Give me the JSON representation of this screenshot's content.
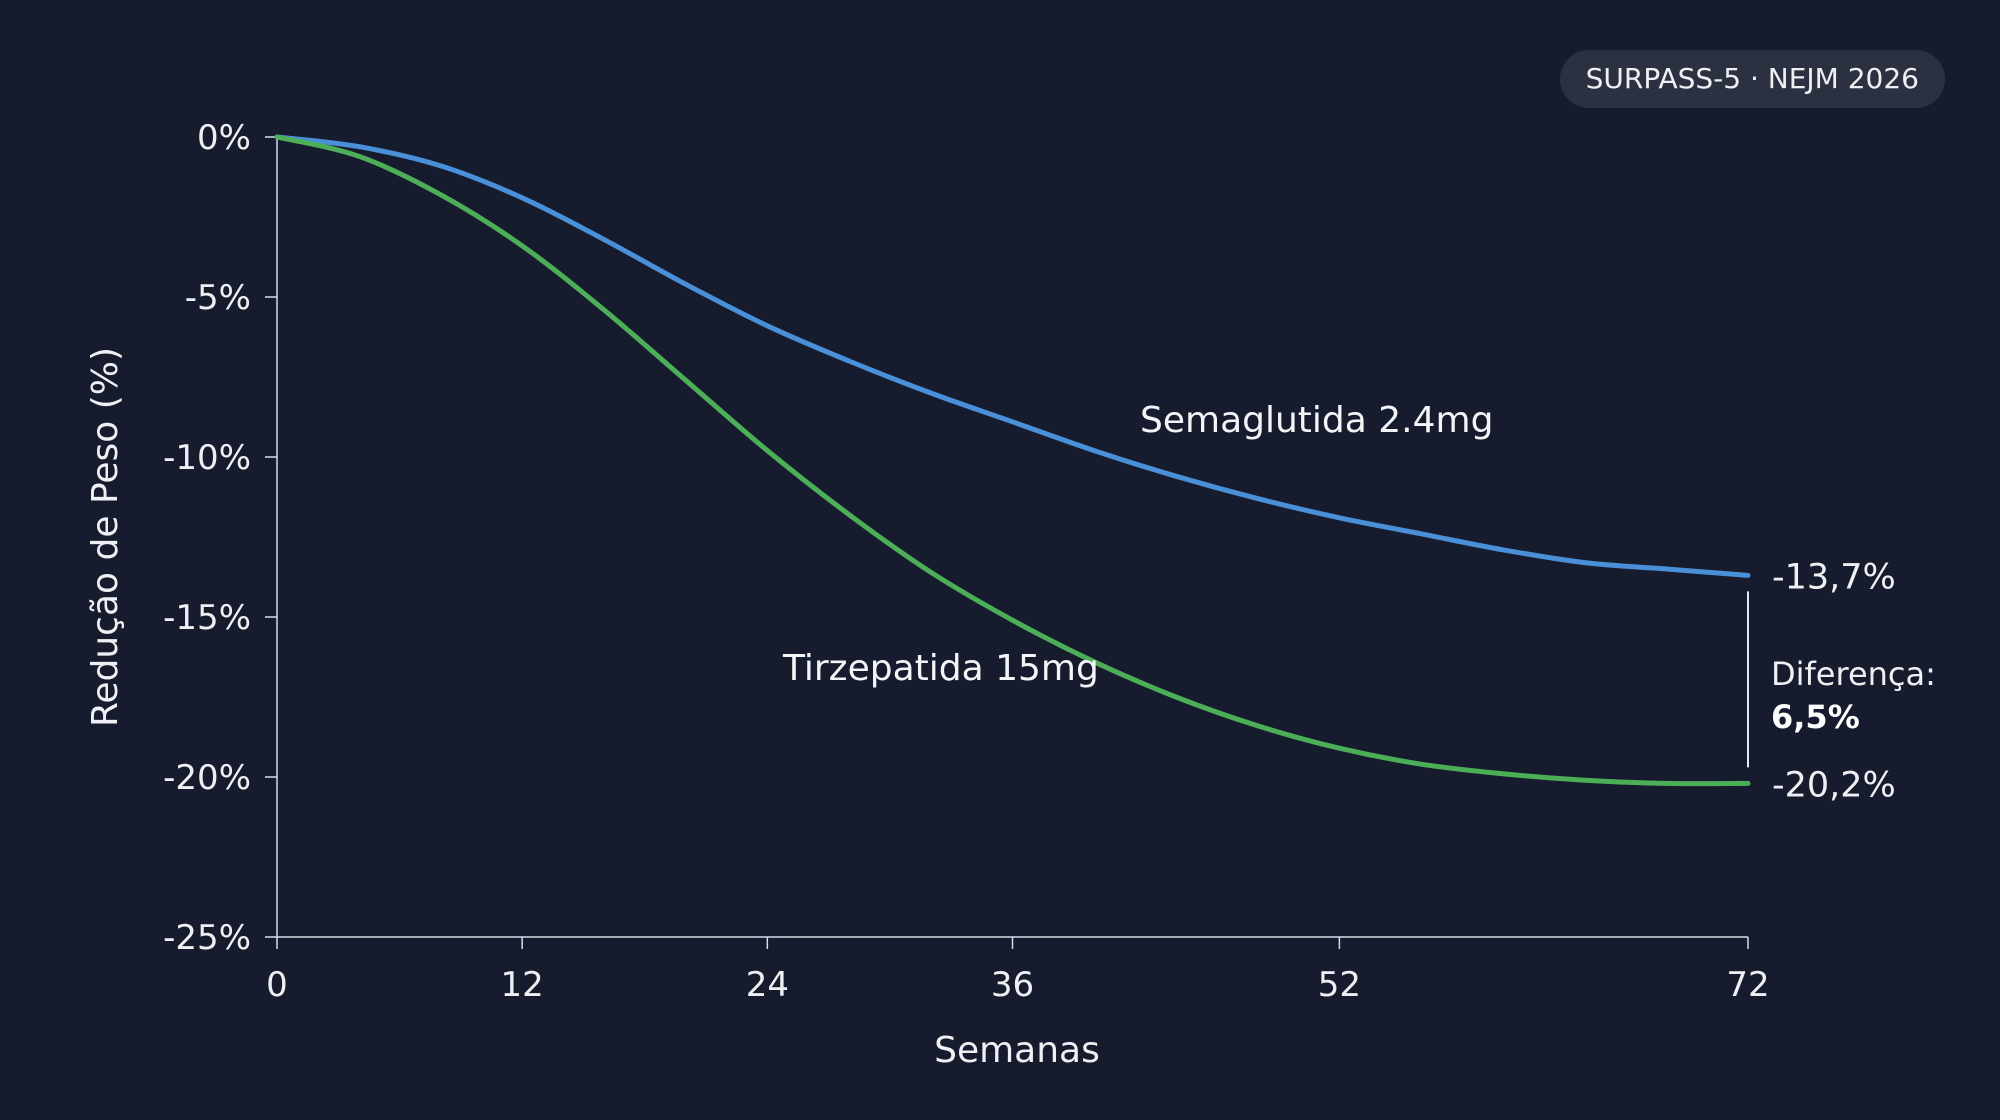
{
  "badge": "SURPASS-5 · NEJM 2026",
  "chart_data": {
    "type": "line",
    "xlabel": "Semanas",
    "ylabel": "Redução de Peso (%)",
    "xlim": [
      0,
      72
    ],
    "ylim": [
      -25,
      0
    ],
    "x_ticks": [
      0,
      12,
      24,
      36,
      52,
      72
    ],
    "y_ticks": [
      0,
      -5,
      -10,
      -15,
      -20,
      -25
    ],
    "y_tick_labels": [
      "0%",
      "-5%",
      "-10%",
      "-15%",
      "-20%",
      "-25%"
    ],
    "x": [
      0,
      4,
      8,
      12,
      16,
      20,
      24,
      28,
      32,
      36,
      40,
      44,
      48,
      52,
      56,
      60,
      64,
      68,
      72
    ],
    "grid": false,
    "series": [
      {
        "name": "Semaglutida 2.4mg",
        "color": "#4a90d9",
        "values": [
          0,
          -0.3,
          -0.9,
          -1.9,
          -3.2,
          -4.6,
          -5.9,
          -7.0,
          -8.0,
          -8.9,
          -9.8,
          -10.6,
          -11.3,
          -11.9,
          -12.4,
          -12.9,
          -13.3,
          -13.5,
          -13.7
        ],
        "end_label": "-13,7%"
      },
      {
        "name": "Tirzepatida 15mg",
        "color": "#4caf58",
        "values": [
          0,
          -0.6,
          -1.8,
          -3.4,
          -5.4,
          -7.6,
          -9.8,
          -11.8,
          -13.6,
          -15.1,
          -16.4,
          -17.5,
          -18.4,
          -19.1,
          -19.6,
          -19.9,
          -20.1,
          -20.2,
          -20.2
        ],
        "end_label": "-20,2%"
      }
    ],
    "annotation": {
      "label": "Diferença:",
      "value": "6,5%"
    }
  }
}
